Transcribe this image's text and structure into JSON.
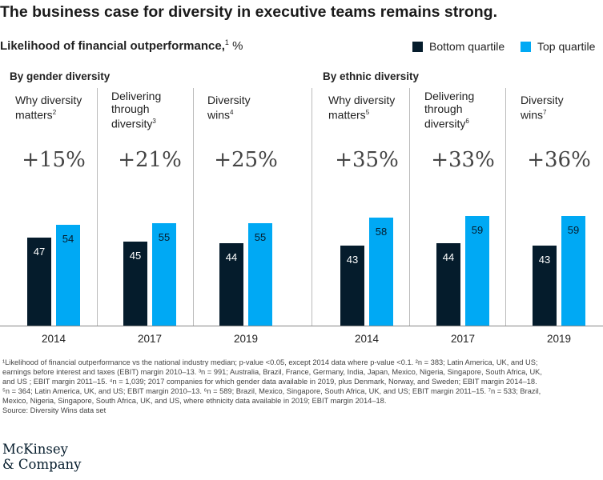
{
  "title": "The business case for diversity in executive teams remains strong.",
  "subtitle": {
    "text": "Likelihood of financial outperformance,",
    "sup": "1",
    "unit": "%"
  },
  "legend": {
    "bottom": "Bottom quartile",
    "top": "Top quartile"
  },
  "colors": {
    "bottom_quartile": "#051c2c",
    "top_quartile": "#00a9f4"
  },
  "chart_data": {
    "type": "bar",
    "title": "The business case for diversity in executive teams remains strong.",
    "ylabel": "Likelihood of financial outperformance, %",
    "series_names": [
      "Bottom quartile",
      "Top quartile"
    ],
    "groups": [
      {
        "title": "By gender diversity",
        "panels": [
          {
            "label_lines": [
              "Why diversity",
              "matters"
            ],
            "sup": "2",
            "diff": "+15%",
            "year": "2014",
            "bottom": 47,
            "top": 54
          },
          {
            "label_lines": [
              "Delivering",
              "through",
              "diversity"
            ],
            "sup": "3",
            "diff": "+21%",
            "year": "2017",
            "bottom": 45,
            "top": 55
          },
          {
            "label_lines": [
              "Diversity",
              "wins"
            ],
            "sup": "4",
            "diff": "+25%",
            "year": "2019",
            "bottom": 44,
            "top": 55
          }
        ]
      },
      {
        "title": "By ethnic diversity",
        "panels": [
          {
            "label_lines": [
              "Why diversity",
              "matters"
            ],
            "sup": "5",
            "diff": "+35%",
            "year": "2014",
            "bottom": 43,
            "top": 58
          },
          {
            "label_lines": [
              "Delivering",
              "through",
              "diversity"
            ],
            "sup": "6",
            "diff": "+33%",
            "year": "2017",
            "bottom": 44,
            "top": 59
          },
          {
            "label_lines": [
              "Diversity",
              "wins"
            ],
            "sup": "7",
            "diff": "+36%",
            "year": "2019",
            "bottom": 43,
            "top": 59
          }
        ]
      }
    ]
  },
  "footnotes": [
    "¹Likelihood of financial outperformance vs the national industry median; p-value <0.05, except 2014 data where p-value <0.1.  ²n = 383; Latin America, UK, and US;",
    "earnings before interest and taxes (EBIT) margin 2010–13. ³n = 991; Australia, Brazil, France, Germany, India, Japan, Mexico, Nigeria, Singapore, South Africa, UK,",
    "and US ; EBIT margin 2011–15. ⁴n = 1,039; 2017 companies for which gender data available in 2019, plus Denmark, Norway, and Sweden;  EBIT margin 2014–18.",
    "⁵n = 364; Latin America, UK, and US; EBIT margin 2010–13. ⁶n = 589; Brazil, Mexico, Singapore, South Africa, UK, and US; EBIT margin 2011–15. ⁷n = 533; Brazil,",
    "Mexico, Nigeria, Singapore, South Africa, UK, and US, where ethnicity data available in 2019; EBIT margin 2014–18.",
    "Source: Diversity Wins data set"
  ],
  "logo": {
    "line1": "McKinsey",
    "line2": "& Company"
  }
}
